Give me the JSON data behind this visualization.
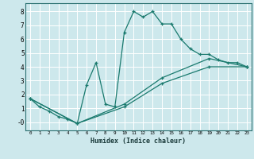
{
  "xlabel": "Humidex (Indice chaleur)",
  "bg_color": "#cde8ec",
  "grid_color": "#ffffff",
  "line_color": "#1a7a6e",
  "xlim": [
    -0.5,
    23.5
  ],
  "ylim": [
    -0.6,
    8.6
  ],
  "xticks": [
    0,
    1,
    2,
    3,
    4,
    5,
    6,
    7,
    8,
    9,
    10,
    11,
    12,
    13,
    14,
    15,
    16,
    17,
    18,
    19,
    20,
    21,
    22,
    23
  ],
  "yticks": [
    0,
    1,
    2,
    3,
    4,
    5,
    6,
    7,
    8
  ],
  "ytick_labels": [
    "-0",
    "1",
    "2",
    "3",
    "4",
    "5",
    "6",
    "7",
    "8"
  ],
  "line1_x": [
    0,
    1,
    2,
    3,
    4,
    5,
    6,
    7,
    8,
    9,
    10,
    11,
    12,
    13,
    14,
    15,
    16,
    17,
    18,
    19,
    20,
    21,
    22,
    23
  ],
  "line1_y": [
    1.7,
    1.1,
    0.8,
    0.4,
    0.2,
    -0.1,
    2.7,
    4.3,
    1.3,
    1.1,
    6.5,
    8.0,
    7.6,
    8.0,
    7.1,
    7.1,
    6.0,
    5.3,
    4.9,
    4.9,
    4.5,
    4.3,
    4.3,
    4.0
  ],
  "line2_x": [
    0,
    5,
    10,
    14,
    19,
    23
  ],
  "line2_y": [
    1.7,
    -0.1,
    1.1,
    2.8,
    4.0,
    4.0
  ],
  "line3_x": [
    0,
    5,
    10,
    14,
    19,
    23
  ],
  "line3_y": [
    1.7,
    -0.1,
    1.3,
    3.2,
    4.6,
    4.0
  ]
}
